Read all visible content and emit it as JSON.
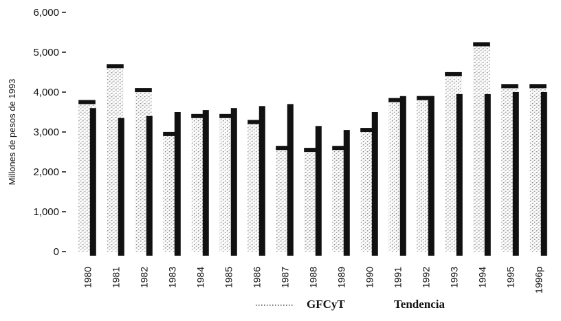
{
  "chart_data": {
    "type": "bar",
    "title": "",
    "xlabel": "",
    "ylabel": "Millones de pesos de 1993",
    "ylim": [
      0,
      6000
    ],
    "yticks": [
      "0",
      "1,000",
      "2,000",
      "3,000",
      "4,000",
      "5,000",
      "6,000"
    ],
    "ytick_values": [
      0,
      1000,
      2000,
      3000,
      4000,
      5000,
      6000
    ],
    "categories": [
      "1980",
      "1981",
      "1982",
      "1983",
      "1984",
      "1985",
      "1986",
      "1987",
      "1988",
      "1989",
      "1990",
      "1991",
      "1992",
      "1993",
      "1994",
      "1995",
      "1996p"
    ],
    "series": [
      {
        "name": "GFCyT",
        "style": "stippled",
        "color": "#9a9a9a",
        "values": [
          3750,
          4650,
          4050,
          2950,
          3400,
          3400,
          3250,
          2600,
          2550,
          2600,
          3050,
          3800,
          3850,
          4450,
          5200,
          4150,
          4150
        ]
      },
      {
        "name": "Tendencia",
        "style": "solid",
        "color": "#111111",
        "values": [
          3600,
          3350,
          3400,
          3500,
          3550,
          3600,
          3650,
          3700,
          3150,
          3050,
          3500,
          3900,
          3900,
          3950,
          3950,
          4000,
          4000
        ]
      }
    ],
    "legend": "bottom-center",
    "grid": false
  }
}
